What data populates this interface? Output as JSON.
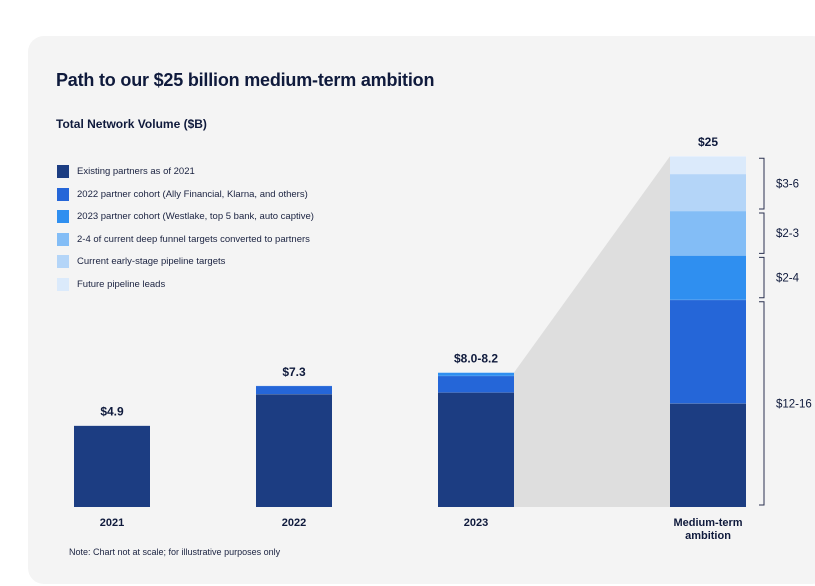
{
  "title": "Path to our $25 billion medium-term ambition",
  "subtitle": "Total Network Volume ($B)",
  "note": "Note: Chart not at scale; for illustrative purposes only",
  "legend": [
    {
      "label": "Existing partners as of 2021",
      "color": "#1c3d82"
    },
    {
      "label": "2022 partner cohort (Ally Financial, Klarna, and others)",
      "color": "#2566d8"
    },
    {
      "label": "2023 partner cohort (Westlake, top 5 bank, auto captive)",
      "color": "#2f8ff0"
    },
    {
      "label": "2-4 of current deep funnel targets converted to partners",
      "color": "#83bdf6"
    },
    {
      "label": "Current early-stage pipeline targets",
      "color": "#b4d5f8"
    },
    {
      "label": "Future pipeline leads",
      "color": "#dbeafb"
    }
  ],
  "chart_data": {
    "type": "bar",
    "stacked": true,
    "to_scale": false,
    "categories": [
      "2021",
      "2022",
      "2023",
      "Medium-term ambition"
    ],
    "totals": [
      "$4.9",
      "$7.3",
      "$8.0-8.2",
      "$25"
    ],
    "series": [
      {
        "name": "Existing partners as of 2021",
        "color": "#1c3d82",
        "values": [
          4.9,
          6.8,
          6.9,
          7.0
        ]
      },
      {
        "name": "2022 partner cohort (Ally Financial, Klarna, and others)",
        "color": "#2566d8",
        "values": [
          0,
          0.5,
          1.0,
          7.0
        ]
      },
      {
        "name": "2023 partner cohort (Westlake, top 5 bank, auto captive)",
        "color": "#2f8ff0",
        "values": [
          0,
          0,
          0.2,
          3.0
        ]
      },
      {
        "name": "2-4 of current deep funnel targets converted to partners",
        "color": "#83bdf6",
        "values": [
          0,
          0,
          0,
          3.0
        ]
      },
      {
        "name": "Current early-stage pipeline targets",
        "color": "#b4d5f8",
        "values": [
          0,
          0,
          0,
          2.5
        ]
      },
      {
        "name": "Future pipeline leads",
        "color": "#dbeafb",
        "values": [
          0,
          0,
          0,
          1.2
        ]
      }
    ],
    "ranges": [
      {
        "label": "$3-6"
      },
      {
        "label": "$2-3"
      },
      {
        "label": "$2-4"
      },
      {
        "label": "$12-16"
      }
    ],
    "legend_position": "top-left",
    "grid": false
  }
}
